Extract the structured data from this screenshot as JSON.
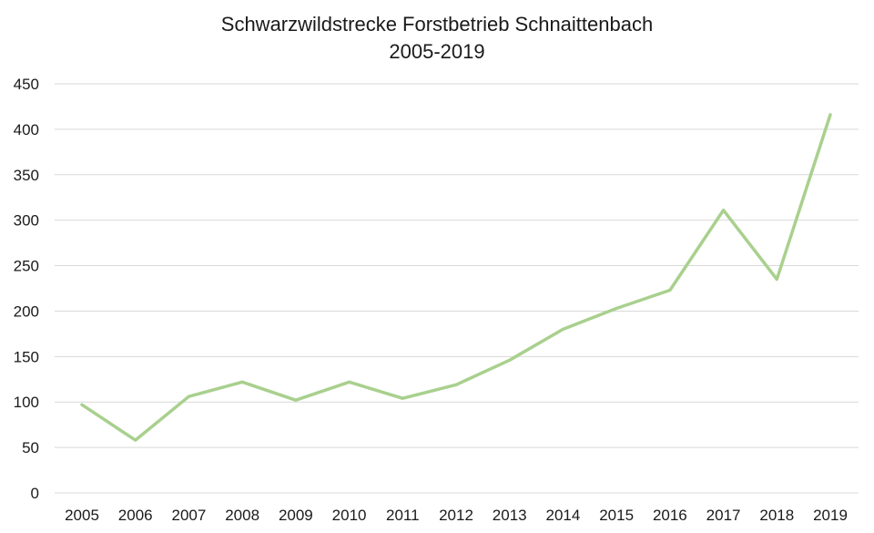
{
  "chart_data": {
    "type": "line",
    "title": "Schwarzwildstrecke Forstbetrieb Schnaittenbach",
    "subtitle": "2005-2019",
    "xlabel": "",
    "ylabel": "",
    "categories": [
      "2005",
      "2006",
      "2007",
      "2008",
      "2009",
      "2010",
      "2011",
      "2012",
      "2013",
      "2014",
      "2015",
      "2016",
      "2017",
      "2018",
      "2019"
    ],
    "series": [
      {
        "values": [
          97,
          58,
          106,
          122,
          102,
          122,
          104,
          119,
          146,
          180,
          203,
          223,
          311,
          235,
          416
        ],
        "color": "#a9d08e"
      }
    ],
    "ylim": [
      0,
      450
    ],
    "yticks": [
      0,
      50,
      100,
      150,
      200,
      250,
      300,
      350,
      400,
      450
    ],
    "grid": true,
    "legend": "none"
  }
}
